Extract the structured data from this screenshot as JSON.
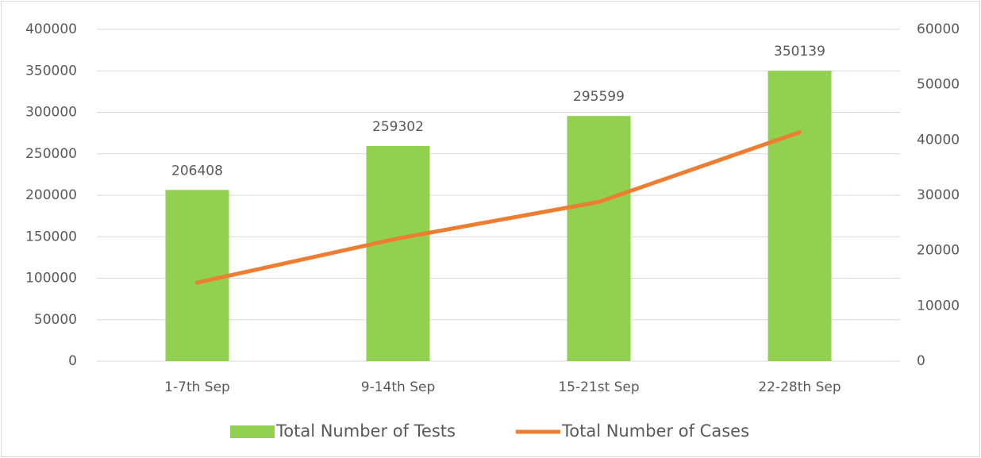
{
  "chart_data": {
    "type": "bar",
    "categories": [
      "1-7th Sep",
      "9-14th Sep",
      "15-21st Sep",
      "22-28th Sep"
    ],
    "series": [
      {
        "name": "Total Number of Tests",
        "color": "#92d050",
        "values": [
          206408,
          259302,
          295599,
          350139
        ]
      },
      {
        "name": "Total Number of Cases",
        "color": "#ed7d31",
        "type": "line",
        "axis": "y2",
        "values": [
          14200,
          22200,
          28800,
          41400
        ]
      }
    ],
    "ylim": [
      0,
      400000
    ],
    "yticks": [
      0,
      50000,
      100000,
      150000,
      200000,
      250000,
      300000,
      350000,
      400000
    ],
    "y2lim": [
      0,
      60000
    ],
    "y2ticks": [
      0,
      10000,
      20000,
      30000,
      40000,
      50000,
      60000
    ],
    "grid": true,
    "legend": "bottom",
    "data_labels": [
      true,
      false
    ]
  }
}
